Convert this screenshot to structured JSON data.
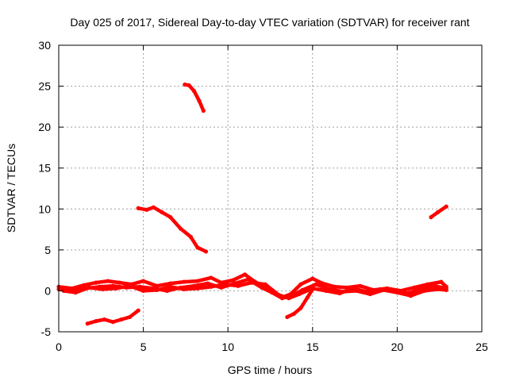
{
  "chart_data": {
    "type": "scatter",
    "title": "Day 025 of 2017, Sidereal Day-to-day VTEC variation (SDTVAR) for receiver rant",
    "xlabel": "GPS time / hours",
    "ylabel": "SDTVAR / TECUs",
    "xlim": [
      0,
      25
    ],
    "ylim": [
      -5,
      30
    ],
    "xticks": [
      0,
      5,
      10,
      15,
      20,
      25
    ],
    "yticks": [
      -5,
      0,
      5,
      10,
      15,
      20,
      25,
      30
    ],
    "grid": true,
    "marker_color": "#ff0000",
    "series": [
      {
        "x": [
          7.45,
          7.7,
          8.0,
          8.3,
          8.55
        ],
        "y": [
          25.2,
          25.1,
          24.4,
          23.2,
          22.0
        ]
      },
      {
        "x": [
          4.7,
          5.2,
          5.6,
          6.1,
          6.6,
          7.2,
          7.8,
          8.2,
          8.7
        ],
        "y": [
          10.1,
          9.9,
          10.2,
          9.6,
          9.0,
          7.6,
          6.6,
          5.3,
          4.8
        ]
      },
      {
        "x": [
          22.0,
          22.4,
          22.9
        ],
        "y": [
          9.0,
          9.6,
          10.3
        ]
      },
      {
        "x": [
          1.7,
          2.2,
          2.7,
          3.2,
          3.7,
          4.2,
          4.7
        ],
        "y": [
          -4.0,
          -3.7,
          -3.5,
          -3.8,
          -3.5,
          -3.2,
          -2.4
        ]
      },
      {
        "x": [
          13.5,
          13.9,
          14.3,
          14.7,
          15.0
        ],
        "y": [
          -3.2,
          -2.8,
          -2.1,
          -0.8,
          0.2
        ]
      },
      {
        "x": [
          0.0,
          0.8,
          1.5,
          2.2,
          2.9,
          3.6,
          4.3,
          5.0,
          5.8,
          6.6,
          7.4,
          8.2,
          9.0,
          9.6,
          10.3,
          11.0,
          11.6,
          12.2,
          12.8,
          13.2,
          13.7,
          14.3,
          15.0,
          15.6,
          16.3,
          17.0,
          17.8,
          18.6,
          19.4,
          20.2,
          21.0,
          21.8,
          22.6,
          22.9
        ],
        "y": [
          0.5,
          0.3,
          0.7,
          1.0,
          1.2,
          1.0,
          0.8,
          1.2,
          0.6,
          0.9,
          1.1,
          1.2,
          1.6,
          1.0,
          1.3,
          2.0,
          1.1,
          0.5,
          -0.3,
          -0.8,
          -0.4,
          0.8,
          1.5,
          0.9,
          0.5,
          0.4,
          0.6,
          0.1,
          0.3,
          0.0,
          0.4,
          0.8,
          1.1,
          0.5
        ]
      },
      {
        "x": [
          0.0,
          0.8,
          1.6,
          2.4,
          3.2,
          4.0,
          4.8,
          5.6,
          6.4,
          7.2,
          8.0,
          8.8,
          9.6,
          10.4,
          11.2,
          12.0,
          12.6,
          13.2,
          13.8,
          14.4,
          15.2,
          16.0,
          16.8,
          17.6,
          18.4,
          19.2,
          20.0,
          20.8,
          21.6,
          22.4,
          22.9
        ],
        "y": [
          0.2,
          0.0,
          0.3,
          0.5,
          0.6,
          0.4,
          0.5,
          0.3,
          0.0,
          0.4,
          0.6,
          0.9,
          0.4,
          0.9,
          1.4,
          0.4,
          -0.2,
          -0.9,
          -0.6,
          0.1,
          0.8,
          0.2,
          -0.1,
          0.0,
          -0.4,
          0.1,
          -0.2,
          -0.6,
          0.0,
          0.2,
          0.1
        ]
      },
      {
        "x": [
          0.3,
          1.0,
          1.8,
          2.6,
          3.4,
          4.2,
          5.0,
          5.8,
          6.6,
          7.4,
          8.2,
          9.0,
          9.8,
          10.6,
          11.4,
          12.2,
          13.0,
          13.6,
          14.2,
          15.0,
          15.8,
          16.6,
          17.4,
          18.2,
          19.0,
          19.8,
          20.6,
          21.4,
          22.2,
          22.9
        ],
        "y": [
          0.0,
          -0.2,
          0.4,
          0.2,
          0.3,
          0.6,
          0.0,
          0.1,
          0.5,
          0.2,
          0.3,
          0.5,
          0.8,
          0.6,
          1.0,
          0.8,
          -0.5,
          -0.9,
          -0.4,
          0.3,
          0.0,
          -0.3,
          0.3,
          -0.1,
          0.2,
          0.1,
          -0.3,
          0.2,
          0.6,
          0.3
        ]
      }
    ]
  }
}
